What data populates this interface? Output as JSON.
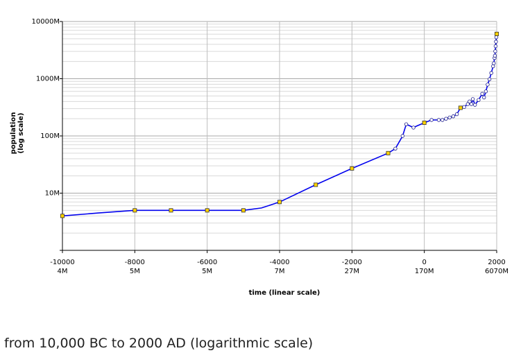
{
  "chart_data": {
    "type": "line",
    "xlabel": "time (linear scale)",
    "ylabel_line1": "population",
    "ylabel_line2": "(log scale)",
    "xlim": [
      -10000,
      2000
    ],
    "ylim": [
      1,
      10000
    ],
    "y_scale": "log",
    "grid": true,
    "x_ticks": [
      {
        "value": -10000,
        "label": "-10000",
        "sub": "4M"
      },
      {
        "value": -8000,
        "label": "-8000",
        "sub": "5M"
      },
      {
        "value": -6000,
        "label": "-6000",
        "sub": "5M"
      },
      {
        "value": -4000,
        "label": "-4000",
        "sub": "7M"
      },
      {
        "value": -2000,
        "label": "-2000",
        "sub": "27M"
      },
      {
        "value": 0,
        "label": "0",
        "sub": "170M"
      },
      {
        "value": 2000,
        "label": "2000",
        "sub": "6070M"
      }
    ],
    "y_ticks": [
      {
        "value": 10,
        "label": "10M"
      },
      {
        "value": 100,
        "label": "100M"
      },
      {
        "value": 1000,
        "label": "1000M"
      },
      {
        "value": 10000,
        "label": "10000M"
      }
    ],
    "series": [
      {
        "color": "#0000ee",
        "x": [
          -10000,
          -9000,
          -8000,
          -7500,
          -7000,
          -6500,
          -6000,
          -5500,
          -5000,
          -4500,
          -4000,
          -3000,
          -2000,
          -1000,
          -800,
          -600,
          -500,
          -400,
          -300,
          -200,
          0,
          200,
          400,
          500,
          600,
          700,
          800,
          900,
          1000,
          1100,
          1200,
          1250,
          1300,
          1340,
          1400,
          1500,
          1600,
          1650,
          1700,
          1750,
          1800,
          1850,
          1900,
          1920,
          1940,
          1950,
          1960,
          1970,
          1980,
          1990,
          2000
        ],
        "y": [
          4,
          4.5,
          5,
          5,
          5,
          5,
          5,
          5,
          5,
          5.5,
          7,
          14,
          27,
          50,
          60,
          100,
          160,
          150,
          140,
          150,
          170,
          190,
          190,
          190,
          200,
          210,
          220,
          240,
          310,
          320,
          360,
          400,
          360,
          440,
          350,
          425,
          545,
          470,
          600,
          790,
          980,
          1260,
          1650,
          1860,
          2300,
          2520,
          3020,
          3700,
          4440,
          5300,
          6070
        ],
        "square_markers": [
          {
            "x": -10000,
            "y": 4
          },
          {
            "x": -8000,
            "y": 5
          },
          {
            "x": -7000,
            "y": 5
          },
          {
            "x": -6000,
            "y": 5
          },
          {
            "x": -5000,
            "y": 5
          },
          {
            "x": -4000,
            "y": 7
          },
          {
            "x": -3000,
            "y": 14
          },
          {
            "x": -2000,
            "y": 27
          },
          {
            "x": -1000,
            "y": 50
          },
          {
            "x": 0,
            "y": 170
          },
          {
            "x": 1000,
            "y": 310
          },
          {
            "x": 2000,
            "y": 6070
          }
        ],
        "circle_markers": [
          {
            "x": -800,
            "y": 60
          },
          {
            "x": -600,
            "y": 100
          },
          {
            "x": -500,
            "y": 160
          },
          {
            "x": -300,
            "y": 140
          },
          {
            "x": 200,
            "y": 190
          },
          {
            "x": 400,
            "y": 190
          },
          {
            "x": 500,
            "y": 190
          },
          {
            "x": 600,
            "y": 200
          },
          {
            "x": 700,
            "y": 210
          },
          {
            "x": 800,
            "y": 220
          },
          {
            "x": 900,
            "y": 240
          },
          {
            "x": 1100,
            "y": 320
          },
          {
            "x": 1200,
            "y": 360
          },
          {
            "x": 1250,
            "y": 400
          },
          {
            "x": 1300,
            "y": 360
          },
          {
            "x": 1340,
            "y": 440
          },
          {
            "x": 1400,
            "y": 350
          },
          {
            "x": 1500,
            "y": 425
          },
          {
            "x": 1600,
            "y": 545
          },
          {
            "x": 1650,
            "y": 470
          },
          {
            "x": 1700,
            "y": 600
          },
          {
            "x": 1750,
            "y": 790
          },
          {
            "x": 1800,
            "y": 980
          },
          {
            "x": 1850,
            "y": 1260
          },
          {
            "x": 1900,
            "y": 1650
          },
          {
            "x": 1920,
            "y": 1860
          },
          {
            "x": 1940,
            "y": 2300
          },
          {
            "x": 1950,
            "y": 2520
          },
          {
            "x": 1960,
            "y": 3020
          },
          {
            "x": 1970,
            "y": 3700
          },
          {
            "x": 1980,
            "y": 4440
          },
          {
            "x": 1990,
            "y": 5300
          }
        ]
      }
    ]
  },
  "caption": "from 10,000 BC to 2000 AD (logarithmic scale)"
}
